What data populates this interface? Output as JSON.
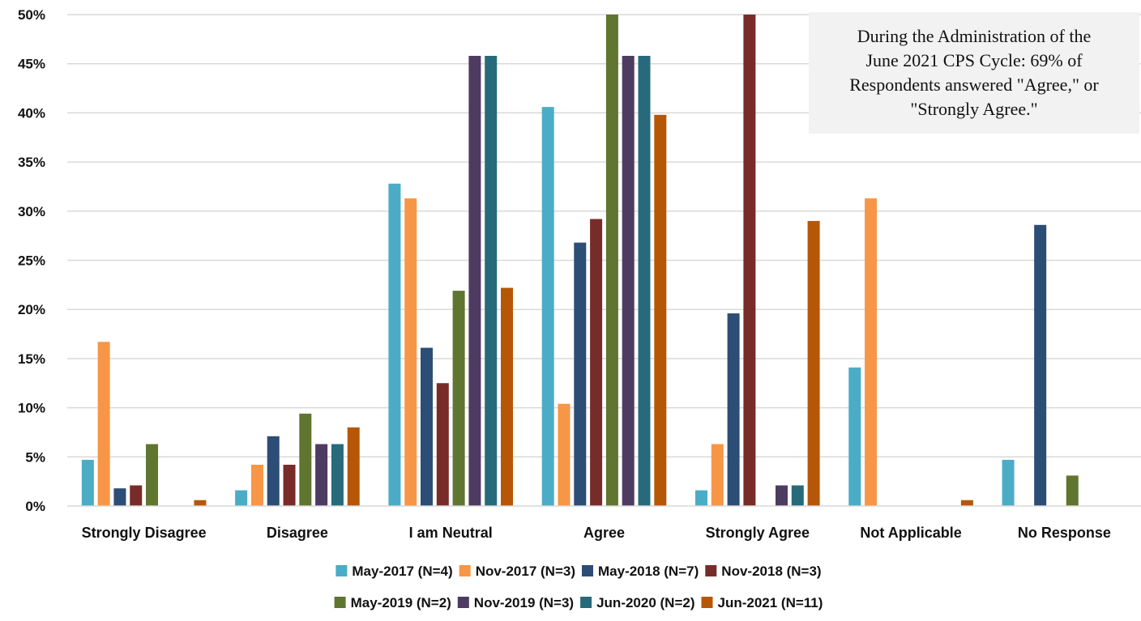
{
  "chart_data": {
    "type": "bar",
    "categories": [
      "Strongly Disagree",
      "Disagree",
      "I am Neutral",
      "Agree",
      "Strongly Agree",
      "Not Applicable",
      "No Response"
    ],
    "series": [
      {
        "name": "May-2017 (N=4)",
        "color": "#4bacc6",
        "values": [
          4.7,
          1.6,
          32.8,
          40.6,
          1.6,
          14.1,
          4.7
        ]
      },
      {
        "name": "Nov-2017 (N=3)",
        "color": "#f79646",
        "values": [
          16.7,
          4.2,
          31.3,
          10.4,
          6.3,
          31.3,
          0
        ]
      },
      {
        "name": "May-2018 (N=7)",
        "color": "#2c4d75",
        "values": [
          1.8,
          7.1,
          16.1,
          26.8,
          19.6,
          0,
          28.6
        ]
      },
      {
        "name": "Nov-2018 (N=3)",
        "color": "#772c2a",
        "values": [
          2.1,
          4.2,
          12.5,
          29.2,
          50.0,
          0,
          0
        ]
      },
      {
        "name": "May-2019 (N=2)",
        "color": "#5f7530",
        "values": [
          6.3,
          9.4,
          21.9,
          50.0,
          0,
          0,
          3.1
        ]
      },
      {
        "name": "Nov-2019 (N=3)",
        "color": "#4d3b62",
        "values": [
          0,
          6.3,
          45.8,
          45.8,
          2.1,
          0,
          0
        ]
      },
      {
        "name": "Jun-2020 (N=2)",
        "color": "#276a7c",
        "values": [
          0,
          6.3,
          45.8,
          45.8,
          2.1,
          0,
          0
        ]
      },
      {
        "name": "Jun-2021 (N=11)",
        "color": "#b65708",
        "values": [
          0.6,
          8.0,
          22.2,
          39.8,
          29.0,
          0.6,
          0
        ]
      }
    ],
    "ylim": [
      0,
      50
    ],
    "yticks": [
      0,
      5,
      10,
      15,
      20,
      25,
      30,
      35,
      40,
      45,
      50
    ],
    "ytick_suffix": "%",
    "grid": true,
    "legend_position": "bottom",
    "legend_rows": [
      [
        0,
        1,
        2,
        3
      ],
      [
        4,
        5,
        6,
        7
      ]
    ]
  },
  "annotation": {
    "text": "During the Administration of the June 2021 CPS Cycle: 69% of Respondents answered \"Agree,\" or \"Strongly Agree.\""
  }
}
